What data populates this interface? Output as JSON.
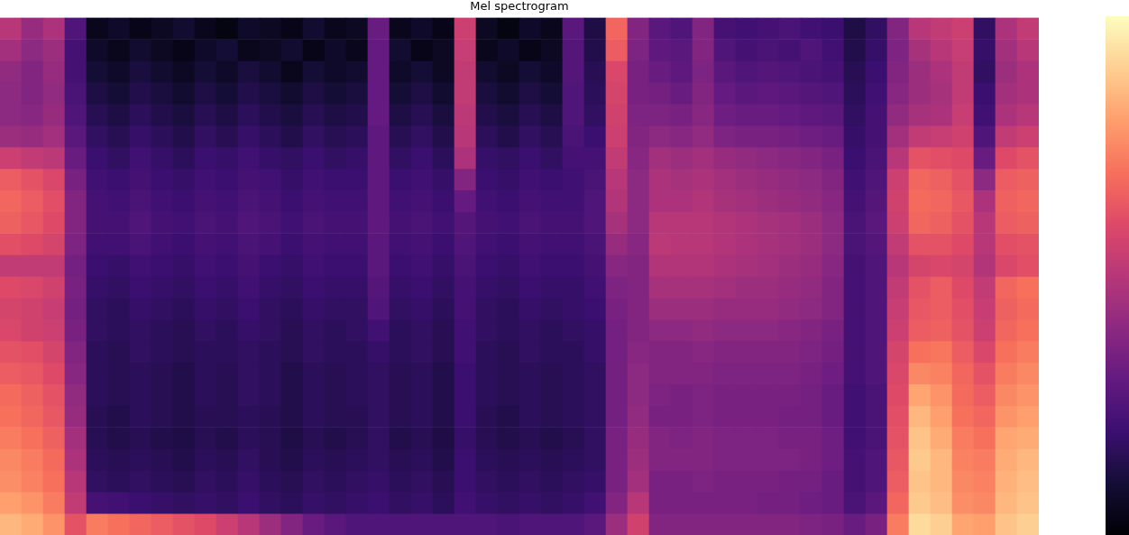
{
  "chart_data": {
    "type": "heatmap",
    "title": "Mel spectrogram",
    "color": "magma",
    "tick_labels": false,
    "colorbar": {
      "range": [
        -80,
        0
      ]
    },
    "cells": [
      [
        -40,
        -46,
        -42,
        -60,
        -76,
        -74,
        -77,
        -75,
        -73,
        -76,
        -78,
        -74,
        -75,
        -77,
        -73,
        -76,
        -75,
        -55,
        -76,
        -74,
        -77,
        -36,
        -75,
        -78,
        -74,
        -76,
        -58,
        -70,
        -26,
        -50,
        -58,
        -60,
        -50,
        -62,
        -63,
        -62,
        -61,
        -63,
        -64,
        -70,
        -66,
        -50,
        -40,
        -38,
        -36,
        -66,
        -42,
        -38
      ],
      [
        -44,
        -48,
        -45,
        -62,
        -74,
        -76,
        -73,
        -75,
        -77,
        -74,
        -72,
        -76,
        -75,
        -73,
        -77,
        -74,
        -76,
        -56,
        -73,
        -77,
        -75,
        -37,
        -76,
        -74,
        -77,
        -75,
        -59,
        -69,
        -28,
        -51,
        -57,
        -58,
        -50,
        -60,
        -62,
        -61,
        -62,
        -60,
        -63,
        -69,
        -65,
        -51,
        -43,
        -40,
        -37,
        -65,
        -44,
        -40
      ],
      [
        -47,
        -50,
        -46,
        -62,
        -72,
        -74,
        -71,
        -73,
        -75,
        -72,
        -74,
        -71,
        -73,
        -76,
        -72,
        -74,
        -73,
        -56,
        -74,
        -72,
        -75,
        -38,
        -73,
        -75,
        -72,
        -74,
        -59,
        -68,
        -33,
        -52,
        -55,
        -57,
        -51,
        -58,
        -60,
        -59,
        -60,
        -61,
        -62,
        -68,
        -64,
        -50,
        -45,
        -42,
        -38,
        -66,
        -45,
        -42
      ],
      [
        -48,
        -50,
        -47,
        -61,
        -70,
        -72,
        -69,
        -71,
        -73,
        -70,
        -72,
        -69,
        -71,
        -73,
        -70,
        -72,
        -71,
        -56,
        -72,
        -70,
        -73,
        -38,
        -71,
        -73,
        -70,
        -72,
        -60,
        -67,
        -34,
        -52,
        -53,
        -55,
        -50,
        -56,
        -58,
        -57,
        -58,
        -59,
        -60,
        -67,
        -63,
        -49,
        -45,
        -43,
        -38,
        -64,
        -44,
        -42
      ],
      [
        -48,
        -49,
        -46,
        -60,
        -68,
        -70,
        -67,
        -69,
        -71,
        -68,
        -70,
        -67,
        -69,
        -71,
        -68,
        -70,
        -69,
        -56,
        -70,
        -68,
        -71,
        -39,
        -69,
        -71,
        -68,
        -70,
        -60,
        -66,
        -35,
        -51,
        -51,
        -52,
        -49,
        -54,
        -55,
        -55,
        -56,
        -57,
        -58,
        -66,
        -62,
        -47,
        -43,
        -42,
        -37,
        -63,
        -42,
        -40
      ],
      [
        -45,
        -46,
        -44,
        -58,
        -66,
        -68,
        -65,
        -67,
        -69,
        -66,
        -68,
        -65,
        -67,
        -69,
        -66,
        -68,
        -67,
        -57,
        -68,
        -66,
        -69,
        -40,
        -67,
        -69,
        -66,
        -68,
        -61,
        -64,
        -36,
        -50,
        -48,
        -49,
        -47,
        -51,
        -52,
        -52,
        -53,
        -54,
        -55,
        -65,
        -62,
        -44,
        -38,
        -37,
        -35,
        -60,
        -38,
        -36
      ],
      [
        -36,
        -38,
        -39,
        -55,
        -64,
        -66,
        -63,
        -65,
        -67,
        -64,
        -65,
        -63,
        -65,
        -66,
        -64,
        -66,
        -65,
        -57,
        -66,
        -64,
        -67,
        -42,
        -65,
        -66,
        -64,
        -66,
        -62,
        -62,
        -38,
        -49,
        -44,
        -45,
        -44,
        -46,
        -47,
        -48,
        -49,
        -50,
        -52,
        -64,
        -61,
        -40,
        -30,
        -31,
        -32,
        -55,
        -32,
        -30
      ],
      [
        -28,
        -30,
        -33,
        -52,
        -63,
        -64,
        -62,
        -64,
        -65,
        -63,
        -64,
        -62,
        -63,
        -65,
        -63,
        -64,
        -64,
        -57,
        -64,
        -63,
        -65,
        -50,
        -64,
        -65,
        -63,
        -64,
        -63,
        -61,
        -40,
        -48,
        -42,
        -43,
        -42,
        -44,
        -45,
        -46,
        -47,
        -48,
        -50,
        -63,
        -60,
        -36,
        -26,
        -27,
        -30,
        -48,
        -28,
        -27
      ],
      [
        -26,
        -28,
        -31,
        -50,
        -62,
        -63,
        -61,
        -63,
        -64,
        -62,
        -63,
        -61,
        -62,
        -64,
        -62,
        -63,
        -63,
        -57,
        -63,
        -62,
        -64,
        -56,
        -63,
        -64,
        -62,
        -63,
        -63,
        -60,
        -41,
        -48,
        -42,
        -42,
        -41,
        -43,
        -44,
        -45,
        -46,
        -47,
        -49,
        -62,
        -59,
        -35,
        -25,
        -26,
        -29,
        -42,
        -27,
        -26
      ],
      [
        -27,
        -29,
        -32,
        -50,
        -62,
        -62,
        -60,
        -62,
        -63,
        -61,
        -62,
        -60,
        -61,
        -63,
        -61,
        -62,
        -62,
        -57,
        -62,
        -61,
        -63,
        -59,
        -62,
        -63,
        -61,
        -62,
        -62,
        -60,
        -43,
        -48,
        -40,
        -40,
        -40,
        -41,
        -42,
        -43,
        -44,
        -45,
        -48,
        -61,
        -58,
        -36,
        -26,
        -27,
        -30,
        -40,
        -28,
        -27
      ],
      [
        -31,
        -32,
        -34,
        -51,
        -63,
        -63,
        -61,
        -63,
        -64,
        -62,
        -63,
        -61,
        -62,
        -64,
        -62,
        -63,
        -63,
        -58,
        -63,
        -62,
        -64,
        -60,
        -63,
        -64,
        -62,
        -63,
        -63,
        -61,
        -46,
        -49,
        -39,
        -40,
        -40,
        -41,
        -42,
        -43,
        -44,
        -45,
        -48,
        -61,
        -59,
        -38,
        -30,
        -30,
        -32,
        -40,
        -31,
        -30
      ],
      [
        -38,
        -38,
        -38,
        -53,
        -64,
        -65,
        -63,
        -64,
        -65,
        -63,
        -64,
        -62,
        -64,
        -65,
        -63,
        -64,
        -64,
        -58,
        -64,
        -63,
        -65,
        -61,
        -64,
        -65,
        -63,
        -64,
        -64,
        -62,
        -49,
        -50,
        -41,
        -41,
        -41,
        -42,
        -43,
        -44,
        -45,
        -46,
        -49,
        -62,
        -60,
        -40,
        -34,
        -33,
        -34,
        -41,
        -33,
        -31
      ],
      [
        -32,
        -33,
        -35,
        -52,
        -65,
        -66,
        -64,
        -65,
        -66,
        -64,
        -65,
        -63,
        -65,
        -66,
        -64,
        -65,
        -65,
        -59,
        -65,
        -64,
        -66,
        -62,
        -65,
        -66,
        -64,
        -65,
        -65,
        -63,
        -51,
        -50,
        -43,
        -43,
        -43,
        -44,
        -45,
        -45,
        -46,
        -47,
        -50,
        -62,
        -60,
        -38,
        -30,
        -28,
        -32,
        -38,
        -26,
        -24
      ],
      [
        -34,
        -35,
        -37,
        -53,
        -66,
        -67,
        -65,
        -66,
        -67,
        -65,
        -66,
        -64,
        -66,
        -67,
        -65,
        -66,
        -66,
        -60,
        -66,
        -65,
        -67,
        -62,
        -66,
        -67,
        -65,
        -66,
        -65,
        -64,
        -52,
        -50,
        -45,
        -45,
        -45,
        -46,
        -46,
        -46,
        -47,
        -48,
        -50,
        -62,
        -60,
        -37,
        -29,
        -28,
        -31,
        -37,
        -27,
        -25
      ],
      [
        -33,
        -35,
        -36,
        -52,
        -66,
        -67,
        -66,
        -67,
        -68,
        -66,
        -67,
        -65,
        -66,
        -68,
        -66,
        -67,
        -66,
        -63,
        -67,
        -66,
        -68,
        -63,
        -66,
        -67,
        -66,
        -67,
        -66,
        -65,
        -53,
        -50,
        -48,
        -48,
        -47,
        -48,
        -48,
        -48,
        -49,
        -50,
        -52,
        -62,
        -60,
        -36,
        -28,
        -27,
        -30,
        -36,
        -26,
        -24
      ],
      [
        -30,
        -31,
        -34,
        -50,
        -67,
        -68,
        -66,
        -67,
        -68,
        -67,
        -67,
        -66,
        -67,
        -68,
        -66,
        -67,
        -67,
        -65,
        -67,
        -66,
        -68,
        -63,
        -67,
        -68,
        -66,
        -67,
        -67,
        -65,
        -53,
        -49,
        -50,
        -50,
        -49,
        -50,
        -50,
        -50,
        -50,
        -51,
        -53,
        -62,
        -60,
        -34,
        -24,
        -23,
        -28,
        -33,
        -24,
        -22
      ],
      [
        -28,
        -29,
        -32,
        -49,
        -67,
        -68,
        -67,
        -68,
        -69,
        -67,
        -68,
        -66,
        -67,
        -69,
        -67,
        -68,
        -67,
        -66,
        -68,
        -67,
        -69,
        -64,
        -67,
        -68,
        -67,
        -68,
        -67,
        -66,
        -53,
        -48,
        -50,
        -50,
        -50,
        -51,
        -51,
        -51,
        -51,
        -52,
        -54,
        -62,
        -60,
        -33,
        -20,
        -21,
        -26,
        -30,
        -22,
        -20
      ],
      [
        -25,
        -27,
        -30,
        -47,
        -67,
        -68,
        -67,
        -68,
        -69,
        -67,
        -68,
        -66,
        -67,
        -69,
        -67,
        -68,
        -67,
        -66,
        -68,
        -67,
        -69,
        -64,
        -67,
        -68,
        -67,
        -68,
        -67,
        -66,
        -53,
        -48,
        -51,
        -52,
        -51,
        -52,
        -52,
        -52,
        -52,
        -53,
        -55,
        -63,
        -61,
        -32,
        -15,
        -18,
        -25,
        -28,
        -20,
        -18
      ],
      [
        -24,
        -26,
        -29,
        -46,
        -68,
        -69,
        -67,
        -68,
        -69,
        -68,
        -68,
        -67,
        -68,
        -69,
        -67,
        -68,
        -68,
        -66,
        -68,
        -67,
        -69,
        -64,
        -68,
        -69,
        -67,
        -68,
        -67,
        -66,
        -53,
        -47,
        -52,
        -52,
        -51,
        -52,
        -52,
        -52,
        -53,
        -53,
        -55,
        -63,
        -61,
        -31,
        -12,
        -16,
        -24,
        -26,
        -18,
        -16
      ],
      [
        -22,
        -24,
        -27,
        -44,
        -68,
        -69,
        -68,
        -69,
        -70,
        -68,
        -69,
        -67,
        -68,
        -70,
        -68,
        -69,
        -68,
        -66,
        -69,
        -68,
        -70,
        -65,
        -68,
        -69,
        -68,
        -69,
        -68,
        -66,
        -52,
        -46,
        -50,
        -51,
        -50,
        -51,
        -51,
        -51,
        -52,
        -52,
        -54,
        -63,
        -61,
        -30,
        -10,
        -14,
        -22,
        -24,
        -15,
        -14
      ],
      [
        -20,
        -22,
        -25,
        -42,
        -67,
        -68,
        -67,
        -68,
        -69,
        -67,
        -68,
        -66,
        -68,
        -69,
        -67,
        -68,
        -67,
        -66,
        -68,
        -67,
        -69,
        -64,
        -67,
        -68,
        -67,
        -68,
        -67,
        -66,
        -52,
        -45,
        -50,
        -50,
        -50,
        -51,
        -51,
        -51,
        -51,
        -52,
        -54,
        -62,
        -60,
        -29,
        -9,
        -12,
        -21,
        -22,
        -14,
        -12
      ],
      [
        -19,
        -21,
        -24,
        -40,
        -66,
        -67,
        -66,
        -67,
        -68,
        -66,
        -67,
        -65,
        -67,
        -68,
        -66,
        -67,
        -66,
        -65,
        -67,
        -66,
        -68,
        -64,
        -66,
        -67,
        -66,
        -67,
        -66,
        -65,
        -52,
        -44,
        -52,
        -52,
        -51,
        -52,
        -52,
        -52,
        -53,
        -53,
        -55,
        -62,
        -60,
        -28,
        -10,
        -12,
        -20,
        -21,
        -13,
        -11
      ],
      [
        -16,
        -18,
        -22,
        -38,
        -62,
        -63,
        -64,
        -65,
        -66,
        -65,
        -66,
        -64,
        -66,
        -67,
        -65,
        -66,
        -65,
        -64,
        -66,
        -65,
        -67,
        -63,
        -65,
        -66,
        -65,
        -66,
        -65,
        -63,
        -50,
        -40,
        -52,
        -52,
        -52,
        -52,
        -52,
        -53,
        -53,
        -54,
        -55,
        -61,
        -58,
        -26,
        -9,
        -11,
        -19,
        -20,
        -12,
        -10
      ],
      [
        -12,
        -14,
        -18,
        -30,
        -22,
        -24,
        -26,
        -28,
        -30,
        -32,
        -36,
        -40,
        -45,
        -50,
        -55,
        -58,
        -60,
        -60,
        -60,
        -60,
        -60,
        -60,
        -60,
        -61,
        -60,
        -60,
        -60,
        -58,
        -45,
        -35,
        -50,
        -50,
        -50,
        -50,
        -50,
        -50,
        -50,
        -51,
        -52,
        -55,
        -52,
        -22,
        -6,
        -8,
        -15,
        -16,
        -10,
        -8
      ]
    ]
  }
}
